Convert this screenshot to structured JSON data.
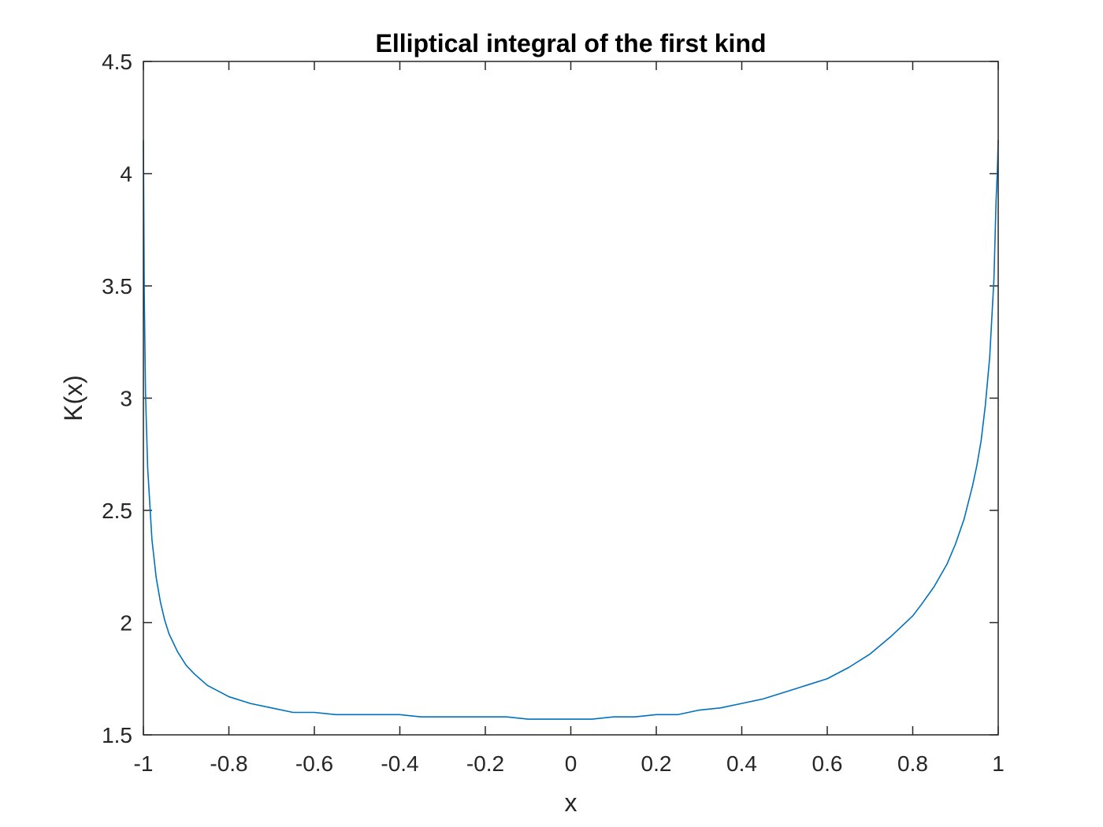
{
  "chart_data": {
    "type": "line",
    "title": "Elliptical integral of the first kind",
    "xlabel": "x",
    "ylabel": "K(x)",
    "xlim": [
      -1,
      1
    ],
    "ylim": [
      1.5,
      4.5
    ],
    "grid": false,
    "box": true,
    "xticks": [
      -1,
      -0.8,
      -0.6,
      -0.4,
      -0.2,
      0,
      0.2,
      0.4,
      0.6,
      0.8,
      1
    ],
    "xtick_labels": [
      "-1",
      "-0.8",
      "-0.6",
      "-0.4",
      "-0.2",
      "0",
      "0.2",
      "0.4",
      "0.6",
      "0.8",
      "1"
    ],
    "yticks": [
      1.5,
      2,
      2.5,
      3,
      3.5,
      4,
      4.5
    ],
    "ytick_labels": [
      "1.5",
      "2",
      "2.5",
      "3",
      "3.5",
      "4",
      "4.5"
    ],
    "series": [
      {
        "color": "#0072BD",
        "x": [
          -1.0,
          -0.999,
          -0.998,
          -0.995,
          -0.99,
          -0.98,
          -0.97,
          -0.96,
          -0.95,
          -0.94,
          -0.92,
          -0.9,
          -0.88,
          -0.85,
          -0.82,
          -0.8,
          -0.75,
          -0.7,
          -0.65,
          -0.6,
          -0.55,
          -0.5,
          -0.45,
          -0.4,
          -0.35,
          -0.3,
          -0.25,
          -0.2,
          -0.15,
          -0.1,
          -0.05,
          0.0,
          0.05,
          0.1,
          0.15,
          0.2,
          0.25,
          0.3,
          0.35,
          0.4,
          0.45,
          0.5,
          0.55,
          0.6,
          0.65,
          0.7,
          0.75,
          0.8,
          0.82,
          0.85,
          0.88,
          0.9,
          0.92,
          0.94,
          0.95,
          0.96,
          0.97,
          0.98,
          0.99,
          0.995,
          0.998,
          0.999,
          1.0
        ],
        "y": [
          4.15,
          3.81,
          3.47,
          3.02,
          2.69,
          2.37,
          2.2,
          2.09,
          2.01,
          1.95,
          1.87,
          1.81,
          1.77,
          1.72,
          1.69,
          1.67,
          1.64,
          1.62,
          1.6,
          1.6,
          1.59,
          1.59,
          1.59,
          1.59,
          1.58,
          1.58,
          1.58,
          1.58,
          1.58,
          1.57,
          1.57,
          1.57,
          1.57,
          1.58,
          1.58,
          1.59,
          1.59,
          1.61,
          1.62,
          1.64,
          1.66,
          1.69,
          1.72,
          1.75,
          1.8,
          1.86,
          1.94,
          2.03,
          2.08,
          2.16,
          2.26,
          2.35,
          2.46,
          2.61,
          2.7,
          2.81,
          2.97,
          3.18,
          3.53,
          3.88,
          4.01,
          4.08,
          4.15
        ]
      }
    ]
  }
}
